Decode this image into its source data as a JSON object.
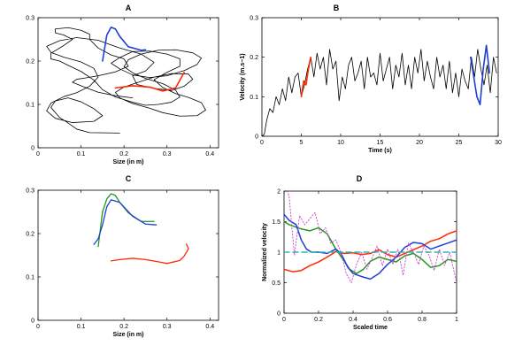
{
  "chart_data": [
    {
      "panel": "A",
      "type": "line",
      "xlabel": "Size (in m)",
      "ylabel": "",
      "xlim": [
        0,
        0.42
      ],
      "ylim": [
        0,
        0.3
      ],
      "xticks": [
        "0",
        "0.1",
        "0.2",
        "0.3",
        "0.4"
      ],
      "yticks": [
        "0",
        "0.1",
        "0.2",
        "0.3"
      ],
      "colors": {
        "path": "#000000",
        "highlight_1": "#ff2a00",
        "highlight_2": "#1f3fd6"
      },
      "series": [
        {
          "x": [
            0.19,
            0.12,
            0.09,
            0.07,
            0.05,
            0.03,
            0.04,
            0.07,
            0.1,
            0.13,
            0.15,
            0.13,
            0.08,
            0.04,
            0.02,
            0.03,
            0.06,
            0.09,
            0.12,
            0.14,
            0.13,
            0.1,
            0.06,
            0.03,
            0.02,
            0.05,
            0.09,
            0.14,
            0.19,
            0.24,
            0.27,
            0.25,
            0.22,
            0.23,
            0.27,
            0.31,
            0.34,
            0.36,
            0.35,
            0.31,
            0.27,
            0.23,
            0.2,
            0.18,
            0.19,
            0.22,
            0.26,
            0.29,
            0.33,
            0.37,
            0.39,
            0.38,
            0.35,
            0.32,
            0.29,
            0.27,
            0.3,
            0.33,
            0.33,
            0.3,
            0.26,
            0.22,
            0.19,
            0.17,
            0.19,
            0.22,
            0.26,
            0.3,
            0.34,
            0.37,
            0.38,
            0.36,
            0.32,
            0.28,
            0.24,
            0.21,
            0.2,
            0.22,
            0.25,
            0.29,
            0.32,
            0.33,
            0.31,
            0.28,
            0.25,
            0.22,
            0.18,
            0.15,
            0.13,
            0.1,
            0.07,
            0.05,
            0.03,
            0.03,
            0.06,
            0.08,
            0.06,
            0.04,
            0.04,
            0.07,
            0.1,
            0.12,
            0.12,
            0.14,
            0.17,
            0.2,
            0.21,
            0.18,
            0.14,
            0.11,
            0.09,
            0.08,
            0.11,
            0.14,
            0.18,
            0.22
          ],
          "y": [
            0.034,
            0.035,
            0.043,
            0.057,
            0.07,
            0.093,
            0.108,
            0.115,
            0.106,
            0.09,
            0.074,
            0.061,
            0.058,
            0.068,
            0.085,
            0.103,
            0.118,
            0.127,
            0.142,
            0.163,
            0.183,
            0.198,
            0.209,
            0.22,
            0.234,
            0.247,
            0.254,
            0.248,
            0.23,
            0.216,
            0.197,
            0.177,
            0.166,
            0.146,
            0.137,
            0.132,
            0.142,
            0.158,
            0.17,
            0.171,
            0.163,
            0.15,
            0.14,
            0.128,
            0.115,
            0.102,
            0.091,
            0.081,
            0.073,
            0.074,
            0.087,
            0.104,
            0.116,
            0.125,
            0.139,
            0.157,
            0.174,
            0.188,
            0.205,
            0.216,
            0.223,
            0.222,
            0.208,
            0.195,
            0.182,
            0.168,
            0.162,
            0.166,
            0.178,
            0.192,
            0.207,
            0.219,
            0.226,
            0.225,
            0.216,
            0.203,
            0.187,
            0.173,
            0.16,
            0.148,
            0.133,
            0.117,
            0.105,
            0.1,
            0.098,
            0.105,
            0.117,
            0.134,
            0.156,
            0.176,
            0.19,
            0.2,
            0.205,
            0.218,
            0.236,
            0.25,
            0.26,
            0.265,
            0.274,
            0.277,
            0.271,
            0.262,
            0.25,
            0.23,
            0.214,
            0.205,
            0.188,
            0.175,
            0.166,
            0.161,
            0.158,
            0.151,
            0.139,
            0.128,
            0.12,
            0.115
          ]
        },
        {
          "x": [
            0.18,
            0.22,
            0.26,
            0.29,
            0.32,
            0.34
          ],
          "y": [
            0.138,
            0.143,
            0.14,
            0.131,
            0.138,
            0.174
          ]
        },
        {
          "x": [
            0.15,
            0.155,
            0.16,
            0.17,
            0.18,
            0.19,
            0.21,
            0.24,
            0.25
          ],
          "y": [
            0.2,
            0.23,
            0.26,
            0.278,
            0.274,
            0.257,
            0.233,
            0.225,
            0.226
          ]
        }
      ]
    },
    {
      "panel": "B",
      "type": "line",
      "xlabel": "Time (s)",
      "ylabel": "Velocity (m.s−1)",
      "xlim": [
        0,
        30
      ],
      "ylim": [
        0,
        0.3
      ],
      "xticks": [
        "0",
        "5",
        "10",
        "15",
        "20",
        "25",
        "30"
      ],
      "yticks": [
        "0",
        "0.1",
        "0.2",
        "0.3"
      ],
      "colors": {
        "trace": "#000000",
        "highlight_1": "#ff2a00",
        "highlight_2": "#1f3fd6"
      },
      "series": [
        {
          "x": [
            0,
            0.3,
            0.6,
            1.0,
            1.4,
            1.8,
            2.2,
            2.6,
            3.0,
            3.4,
            3.8,
            4.2,
            4.6,
            5.0,
            5.4,
            5.8,
            6.2,
            6.6,
            7.0,
            7.4,
            7.8,
            8.2,
            8.6,
            9.0,
            9.4,
            9.8,
            10.2,
            10.6,
            11.0,
            11.4,
            11.8,
            12.2,
            12.6,
            13.0,
            13.4,
            13.8,
            14.2,
            14.6,
            15.0,
            15.4,
            15.8,
            16.2,
            16.6,
            17.0,
            17.4,
            17.8,
            18.2,
            18.6,
            19.0,
            19.4,
            19.8,
            20.2,
            20.6,
            21.0,
            21.4,
            21.8,
            22.2,
            22.6,
            23.0,
            23.4,
            23.8,
            24.2,
            24.6,
            25.0,
            25.4,
            25.8,
            26.2,
            26.6,
            27.0,
            27.4,
            27.8,
            28.2,
            28.6,
            29.0,
            29.4,
            29.8
          ],
          "y": [
            0.0,
            0.005,
            0.04,
            0.07,
            0.06,
            0.1,
            0.08,
            0.12,
            0.09,
            0.15,
            0.11,
            0.15,
            0.16,
            0.1,
            0.13,
            0.17,
            0.2,
            0.15,
            0.21,
            0.17,
            0.2,
            0.13,
            0.22,
            0.17,
            0.19,
            0.09,
            0.15,
            0.12,
            0.18,
            0.2,
            0.14,
            0.16,
            0.19,
            0.12,
            0.2,
            0.15,
            0.16,
            0.13,
            0.21,
            0.14,
            0.17,
            0.2,
            0.12,
            0.18,
            0.15,
            0.21,
            0.13,
            0.18,
            0.12,
            0.2,
            0.16,
            0.22,
            0.14,
            0.19,
            0.15,
            0.12,
            0.2,
            0.15,
            0.18,
            0.12,
            0.19,
            0.11,
            0.16,
            0.1,
            0.17,
            0.14,
            0.12,
            0.2,
            0.15,
            0.22,
            0.17,
            0.13,
            0.18,
            0.11,
            0.2,
            0.16
          ]
        },
        {
          "x": [
            5.0,
            5.3,
            5.6,
            5.9,
            6.2
          ],
          "y": [
            0.1,
            0.14,
            0.13,
            0.17,
            0.2
          ]
        },
        {
          "x": [
            26.5,
            26.9,
            27.3,
            27.7,
            28.1,
            28.5,
            28.9
          ],
          "y": [
            0.2,
            0.15,
            0.1,
            0.08,
            0.17,
            0.23,
            0.16
          ]
        }
      ]
    },
    {
      "panel": "C",
      "type": "line",
      "xlabel": "Size (in m)",
      "ylabel": "",
      "xlim": [
        0,
        0.42
      ],
      "ylim": [
        0,
        0.3
      ],
      "xticks": [
        "0",
        "0.1",
        "0.2",
        "0.3",
        "0.4"
      ],
      "yticks": [
        "0",
        "0.1",
        "0.2",
        "0.3"
      ],
      "colors": {
        "red": "#ff2a00",
        "green": "#1f9a1f",
        "blue": "#1f3fd6"
      },
      "series": [
        {
          "x": [
            0.17,
            0.19,
            0.22,
            0.25,
            0.28,
            0.3,
            0.33,
            0.34,
            0.35,
            0.345
          ],
          "y": [
            0.137,
            0.14,
            0.143,
            0.14,
            0.135,
            0.131,
            0.138,
            0.148,
            0.165,
            0.176
          ]
        },
        {
          "x": [
            0.14,
            0.145,
            0.15,
            0.16,
            0.17,
            0.18,
            0.19,
            0.21,
            0.24,
            0.27
          ],
          "y": [
            0.17,
            0.21,
            0.25,
            0.28,
            0.292,
            0.288,
            0.272,
            0.248,
            0.228,
            0.228
          ]
        },
        {
          "x": [
            0.13,
            0.14,
            0.15,
            0.16,
            0.17,
            0.19,
            0.22,
            0.25,
            0.275
          ],
          "y": [
            0.175,
            0.188,
            0.22,
            0.262,
            0.278,
            0.272,
            0.24,
            0.222,
            0.22
          ]
        }
      ]
    },
    {
      "panel": "D",
      "type": "line",
      "xlabel": "Scaled time",
      "ylabel": "Normalized velocity",
      "xlim": [
        0,
        1
      ],
      "ylim": [
        0,
        2
      ],
      "xticks": [
        "0",
        "0.2",
        "0.4",
        "0.6",
        "0.8",
        "1"
      ],
      "yticks": [
        "0",
        "0.5",
        "1",
        "1.5",
        "2"
      ],
      "colors": {
        "red": "#ff2a00",
        "green": "#1f9a1f",
        "blue": "#1f3fd6",
        "dashed": "#2bb5b0",
        "dotted": "#cc44cc"
      },
      "series": [
        {
          "x": [
            0,
            0.05,
            0.1,
            0.15,
            0.2,
            0.25,
            0.3,
            0.35,
            0.4,
            0.45,
            0.5,
            0.55,
            0.6,
            0.65,
            0.7,
            0.75,
            0.8,
            0.85,
            0.9,
            0.95,
            1.0
          ],
          "y": [
            0.72,
            0.68,
            0.7,
            0.78,
            0.84,
            0.92,
            1.01,
            0.98,
            0.99,
            0.96,
            0.98,
            1.04,
            0.96,
            0.92,
            0.98,
            1.04,
            1.1,
            1.18,
            1.22,
            1.3,
            1.35
          ]
        },
        {
          "x": [
            0,
            0.03,
            0.06,
            0.1,
            0.15,
            0.2,
            0.25,
            0.3,
            0.35,
            0.38,
            0.42,
            0.46,
            0.5,
            0.55,
            0.6,
            0.65,
            0.7,
            0.75,
            0.8,
            0.85,
            0.9,
            0.95,
            1.0
          ],
          "y": [
            1.5,
            1.45,
            1.42,
            1.38,
            1.35,
            1.4,
            1.3,
            1.05,
            0.85,
            0.72,
            0.65,
            0.72,
            0.85,
            0.92,
            0.88,
            0.84,
            0.94,
            0.98,
            0.88,
            0.75,
            0.78,
            0.88,
            0.85
          ]
        },
        {
          "x": [
            0,
            0.03,
            0.07,
            0.1,
            0.13,
            0.16,
            0.2,
            0.25,
            0.3,
            0.33,
            0.37,
            0.4,
            0.45,
            0.5,
            0.55,
            0.6,
            0.65,
            0.7,
            0.75,
            0.8,
            0.85,
            0.9,
            0.95,
            1.0
          ],
          "y": [
            1.62,
            1.52,
            1.45,
            1.2,
            1.05,
            1.0,
            1.0,
            0.98,
            1.05,
            0.98,
            0.75,
            0.65,
            0.6,
            0.56,
            0.65,
            0.8,
            0.92,
            1.08,
            1.16,
            1.14,
            1.05,
            1.1,
            1.15,
            1.2
          ]
        },
        {
          "x": [
            0,
            1
          ],
          "y": [
            1,
            1
          ]
        },
        {
          "x": [
            0,
            0.03,
            0.06,
            0.09,
            0.12,
            0.15,
            0.18,
            0.21,
            0.24,
            0.27,
            0.3,
            0.33,
            0.36,
            0.39,
            0.42,
            0.45,
            0.48,
            0.51,
            0.54,
            0.57,
            0.6,
            0.63,
            0.66,
            0.69,
            0.72,
            0.75,
            0.78,
            0.81,
            0.84,
            0.87,
            0.9,
            0.93,
            0.96,
            1.0
          ],
          "y": [
            2.2,
            1.9,
            0.95,
            1.6,
            1.45,
            1.55,
            1.65,
            1.3,
            1.4,
            1.15,
            1.2,
            1.0,
            0.65,
            0.5,
            0.8,
            1.0,
            0.72,
            0.9,
            1.1,
            0.78,
            1.05,
            0.8,
            1.05,
            0.62,
            1.15,
            1.0,
            0.8,
            1.1,
            0.95,
            0.7,
            1.05,
            0.78,
            1.0,
            0.5
          ]
        }
      ]
    }
  ]
}
